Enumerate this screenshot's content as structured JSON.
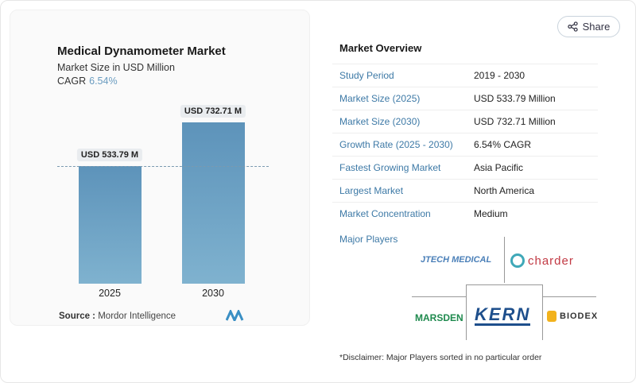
{
  "header": {
    "share_label": "Share",
    "share_icon": "share-icon"
  },
  "chart_data": {
    "type": "bar",
    "title": "Medical Dynamometer Market",
    "subtitle": "Market Size in USD Million",
    "cagr_label": "CAGR",
    "cagr_value": "6.54%",
    "categories": [
      "2025",
      "2030"
    ],
    "values": [
      533.79,
      732.71
    ],
    "data_labels": [
      "USD 533.79 M",
      "USD 732.71 M"
    ],
    "reference_line": 533.79,
    "bar_color": "#6a9ec4",
    "source_label": "Source :",
    "source": "Mordor Intelligence"
  },
  "overview": {
    "title": "Market Overview",
    "rows": [
      {
        "k": "Study Period",
        "v": "2019 - 2030"
      },
      {
        "k": "Market Size (2025)",
        "v": "USD 533.79 Million"
      },
      {
        "k": "Market Size (2030)",
        "v": "USD 732.71 Million"
      },
      {
        "k": "Growth Rate (2025 - 2030)",
        "v": "6.54% CAGR"
      },
      {
        "k": "Fastest Growing Market",
        "v": "Asia Pacific"
      },
      {
        "k": "Largest Market",
        "v": "North America"
      },
      {
        "k": "Market Concentration",
        "v": "Medium"
      }
    ],
    "major_players_label": "Major Players",
    "players": [
      "JTECH MEDICAL",
      "charder",
      "MARSDEN",
      "KERN",
      "BIODEX"
    ],
    "disclaimer": "*Disclaimer: Major Players sorted in no particular order"
  }
}
